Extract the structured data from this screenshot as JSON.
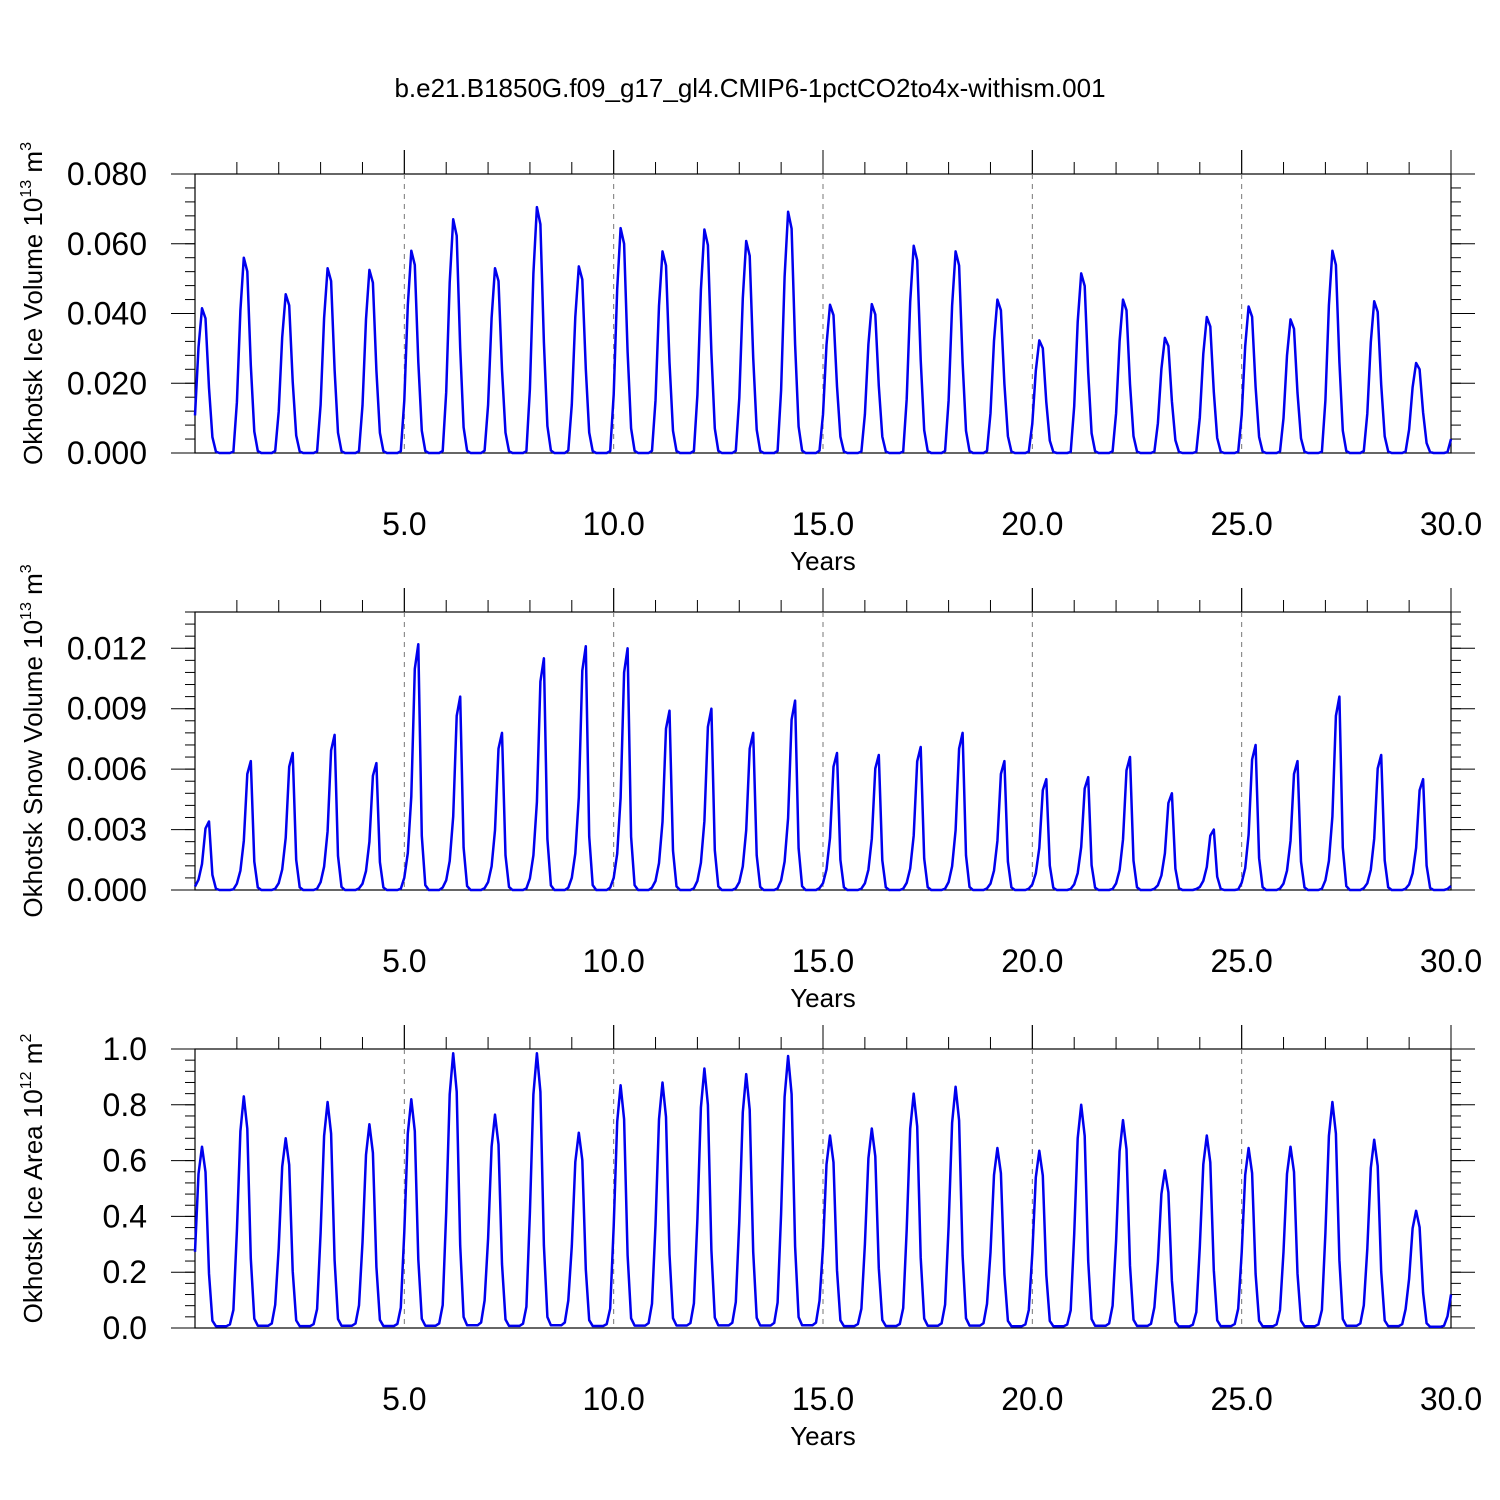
{
  "title": "b.e21.B1850G.f09_g17_gl4.CMIP6-1pctCO2to4x-withism.001",
  "colors": {
    "line": "#0000ee",
    "axis": "#000000",
    "grid": "#777777"
  },
  "chart_data": [
    {
      "type": "line",
      "xlabel": "Years",
      "ylabel": "Okhotsk Ice Volume 10",
      "ylabel_exp": "13",
      "ylabel_unit": " m",
      "ylabel_unit_exp": "3",
      "xlim": [
        0,
        30
      ],
      "ylim": [
        0,
        0.08
      ],
      "xticks": [
        5,
        10,
        15,
        20,
        25,
        30
      ],
      "xtick_labels": [
        "5.0",
        "10.0",
        "15.0",
        "20.0",
        "25.0",
        "30.0"
      ],
      "yticks": [
        0,
        0.02,
        0.04,
        0.06,
        0.08
      ],
      "ytick_labels": [
        "0.000",
        "0.020",
        "0.040",
        "0.060",
        "0.080"
      ],
      "vgrid": [
        5,
        10,
        15,
        20,
        25
      ],
      "series_name": "",
      "peak_month_index": 3,
      "annual_peaks": [
        0.0415,
        0.056,
        0.0455,
        0.053,
        0.0525,
        0.058,
        0.067,
        0.053,
        0.0705,
        0.0535,
        0.0645,
        0.0578,
        0.0641,
        0.0608,
        0.0692,
        0.0425,
        0.0427,
        0.0594,
        0.0578,
        0.044,
        0.0323,
        0.0515,
        0.044,
        0.033,
        0.039,
        0.042,
        0.0383,
        0.058,
        0.0435,
        0.0258
      ],
      "monthly_shape": [
        0.26,
        0.73,
        1.0,
        0.93,
        0.45,
        0.11,
        0.01,
        0.0,
        0.0,
        0.0,
        0.0,
        0.01
      ],
      "final_value": 0.004
    },
    {
      "type": "line",
      "xlabel": "Years",
      "ylabel": "Okhotsk Snow Volume 10",
      "ylabel_exp": "13",
      "ylabel_unit": " m",
      "ylabel_unit_exp": "3",
      "xlim": [
        0,
        30
      ],
      "ylim": [
        0,
        0.0138
      ],
      "xticks": [
        5,
        10,
        15,
        20,
        25,
        30
      ],
      "xtick_labels": [
        "5.0",
        "10.0",
        "15.0",
        "20.0",
        "25.0",
        "30.0"
      ],
      "yticks": [
        0,
        0.003,
        0.006,
        0.009,
        0.012
      ],
      "ytick_labels": [
        "0.000",
        "0.003",
        "0.006",
        "0.009",
        "0.012"
      ],
      "vgrid": [
        5,
        10,
        15,
        20,
        25
      ],
      "series_name": "",
      "peak_month_index": 3,
      "annual_peaks": [
        0.0034,
        0.0064,
        0.0068,
        0.0077,
        0.0063,
        0.0122,
        0.0096,
        0.0078,
        0.0115,
        0.0121,
        0.012,
        0.0089,
        0.009,
        0.0078,
        0.0094,
        0.0068,
        0.0067,
        0.0071,
        0.0078,
        0.0064,
        0.0055,
        0.0056,
        0.0066,
        0.0048,
        0.003,
        0.0072,
        0.0064,
        0.0096,
        0.0067,
        0.0055
      ],
      "monthly_shape": [
        0.05,
        0.15,
        0.38,
        0.9,
        1.0,
        0.22,
        0.02,
        0.0,
        0.0,
        0.0,
        0.0,
        0.01
      ],
      "final_value": 0.0002
    },
    {
      "type": "line",
      "xlabel": "Years",
      "ylabel": "Okhotsk Ice Area 10",
      "ylabel_exp": "12",
      "ylabel_unit": " m",
      "ylabel_unit_exp": "2",
      "xlim": [
        0,
        30
      ],
      "ylim": [
        0,
        1.0
      ],
      "xticks": [
        5,
        10,
        15,
        20,
        25,
        30
      ],
      "xtick_labels": [
        "5.0",
        "10.0",
        "15.0",
        "20.0",
        "25.0",
        "30.0"
      ],
      "yticks": [
        0,
        0.2,
        0.4,
        0.6,
        0.8,
        1.0
      ],
      "ytick_labels": [
        "0.0",
        "0.2",
        "0.4",
        "0.6",
        "0.8",
        "1.0"
      ],
      "vgrid": [
        5,
        10,
        15,
        20,
        25
      ],
      "series_name": "",
      "peak_month_index": 2,
      "annual_peaks": [
        0.65,
        0.83,
        0.68,
        0.81,
        0.73,
        0.82,
        0.985,
        0.765,
        0.985,
        0.7,
        0.87,
        0.88,
        0.93,
        0.91,
        0.975,
        0.69,
        0.715,
        0.84,
        0.865,
        0.645,
        0.635,
        0.8,
        0.745,
        0.565,
        0.69,
        0.645,
        0.65,
        0.81,
        0.675,
        0.42
      ],
      "monthly_shape": [
        0.42,
        0.85,
        1.0,
        0.86,
        0.3,
        0.04,
        0.01,
        0.01,
        0.01,
        0.01,
        0.02,
        0.1
      ],
      "final_value": 0.12
    }
  ]
}
